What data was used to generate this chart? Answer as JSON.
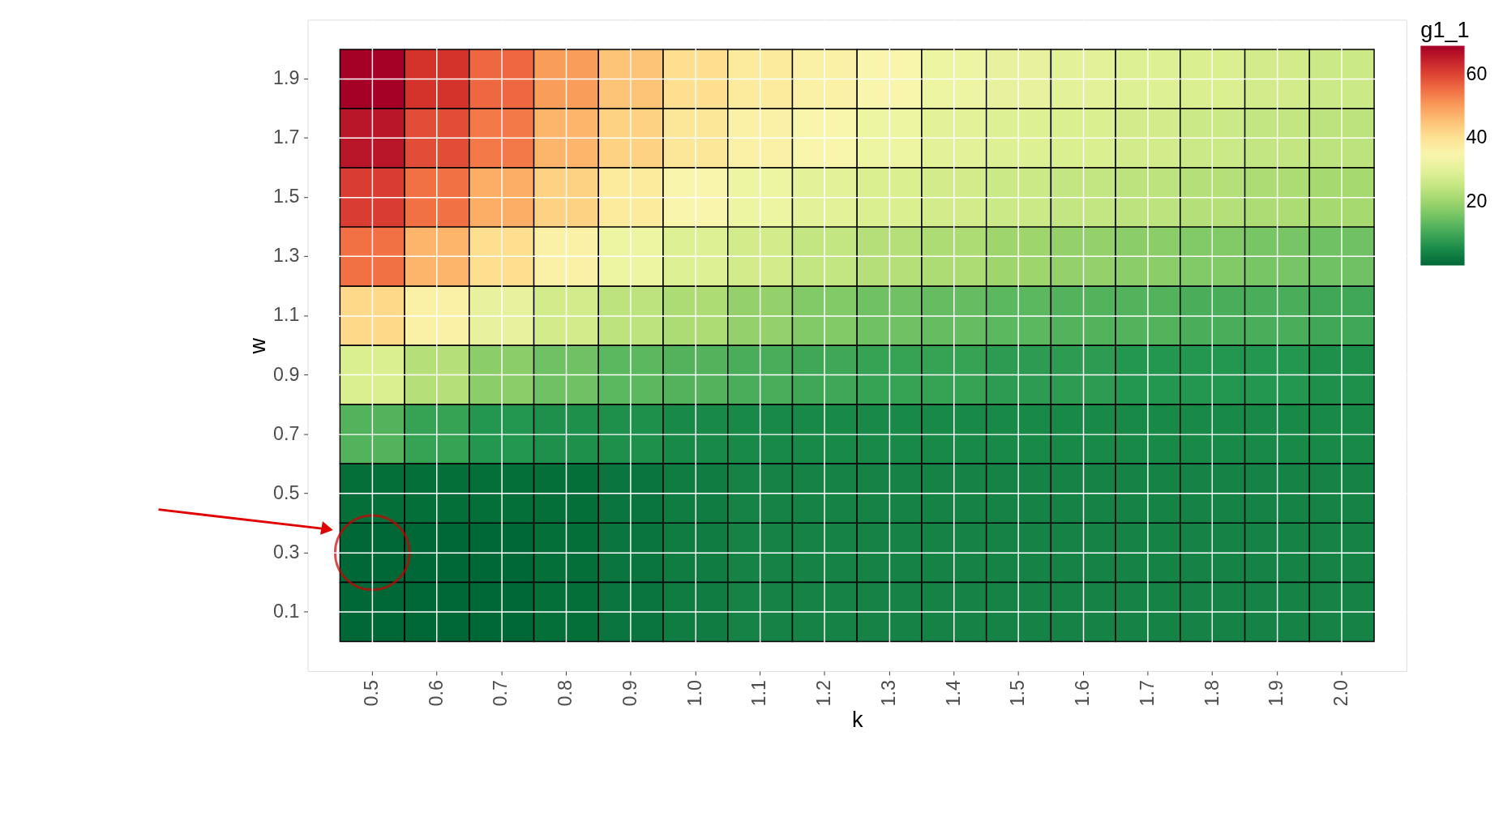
{
  "chart_data": {
    "type": "heatmap",
    "xlabel": "k",
    "ylabel": "w",
    "clabel": "g1_1",
    "categories": [
      "0.5",
      "0.6",
      "0.7",
      "0.8",
      "0.9",
      "1.0",
      "1.1",
      "1.2",
      "1.3",
      "1.4",
      "1.5",
      "1.6",
      "1.7",
      "1.8",
      "1.9",
      "2.0"
    ],
    "y_categories": [
      "1.9",
      "1.7",
      "1.5",
      "1.3",
      "1.1",
      "0.9",
      "0.7",
      "0.5",
      "0.3",
      "0.1"
    ],
    "cells": [
      [
        69,
        62,
        56,
        50,
        45,
        41,
        38,
        36,
        34,
        32,
        31,
        30,
        29,
        28,
        27,
        26
      ],
      [
        66,
        59,
        54,
        47,
        43,
        39,
        36,
        34,
        32,
        30,
        29,
        28,
        27,
        26,
        25,
        24
      ],
      [
        61,
        55,
        48,
        43,
        38,
        35,
        32,
        30,
        28,
        27,
        26,
        25,
        24,
        23,
        22,
        21
      ],
      [
        55,
        47,
        41,
        36,
        32,
        29,
        27,
        25,
        23,
        22,
        20,
        19,
        18,
        17,
        16,
        15
      ],
      [
        42,
        36,
        31,
        27,
        24,
        22,
        19,
        17,
        15,
        14,
        13,
        12,
        12,
        11,
        11,
        10
      ],
      [
        28,
        23,
        18,
        15,
        13,
        12,
        11,
        10,
        9,
        9,
        8,
        8,
        7,
        7,
        7,
        6
      ],
      [
        12,
        9,
        7,
        6,
        6,
        5,
        5,
        5,
        5,
        5,
        5,
        5,
        5,
        5,
        5,
        5
      ],
      [
        1,
        1,
        1,
        1,
        2,
        3,
        4,
        4,
        4,
        4,
        4,
        4,
        4,
        4,
        4,
        4
      ],
      [
        0,
        0,
        0,
        1,
        2,
        3,
        4,
        4,
        4,
        4,
        4,
        4,
        4,
        4,
        4,
        4
      ],
      [
        0,
        0,
        0,
        1,
        2,
        3,
        4,
        4,
        4,
        4,
        4,
        4,
        4,
        4,
        4,
        4
      ]
    ],
    "clim": [
      0,
      69
    ],
    "cticks": [
      20,
      40,
      60
    ],
    "grid": true
  }
}
